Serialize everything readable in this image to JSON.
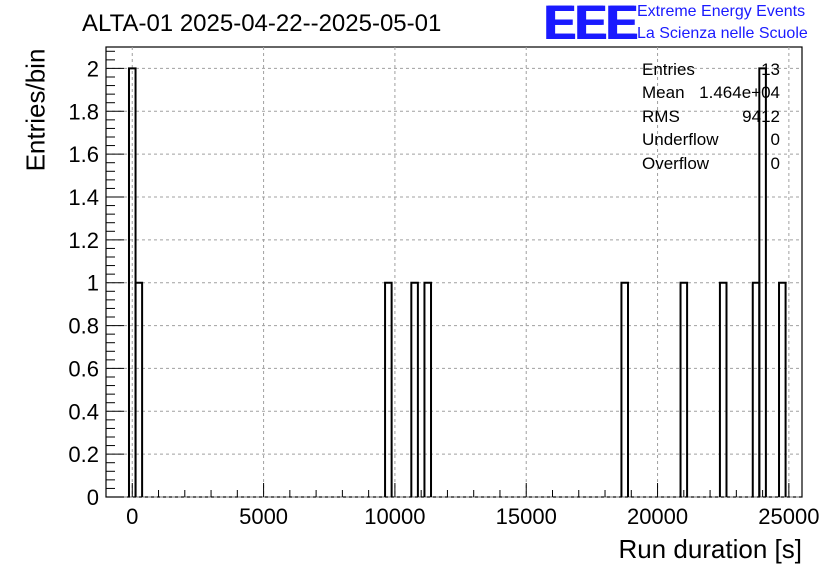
{
  "header": {
    "title": "ALTA-01 2025-04-22--2025-05-01",
    "logo_text": "EEE",
    "logo_line1": "Extreme Energy Events",
    "logo_line2": "La Scienza nelle Scuole"
  },
  "stats_box": {
    "rows": [
      {
        "label": "Entries",
        "value": "13"
      },
      {
        "label": "Mean",
        "value": "1.464e+04"
      },
      {
        "label": "RMS",
        "value": "9412"
      },
      {
        "label": "Underflow",
        "value": "0"
      },
      {
        "label": "Overflow",
        "value": "0"
      }
    ]
  },
  "colors": {
    "logo": "#1a1aff",
    "histogram_line": "#000000",
    "grid": "#a0a0a0"
  },
  "chart_data": {
    "type": "bar",
    "style": "step-histogram",
    "xlabel": "Run duration [s]",
    "ylabel": "Entries/bin",
    "xlim": [
      -1000,
      25500
    ],
    "ylim": [
      0,
      2.1
    ],
    "x_ticks": [
      "0",
      "5000",
      "10000",
      "15000",
      "20000",
      "25000"
    ],
    "y_ticks": [
      "0",
      "0.2",
      "0.4",
      "0.6",
      "0.8",
      "1",
      "1.2",
      "1.4",
      "1.6",
      "1.8",
      "2"
    ],
    "grid": true,
    "bins": [
      {
        "low": -125,
        "high": 125,
        "count": 2
      },
      {
        "low": 125,
        "high": 375,
        "count": 1
      },
      {
        "low": 9625,
        "high": 9875,
        "count": 1
      },
      {
        "low": 10625,
        "high": 10875,
        "count": 1
      },
      {
        "low": 11125,
        "high": 11375,
        "count": 1
      },
      {
        "low": 18625,
        "high": 18875,
        "count": 1
      },
      {
        "low": 20875,
        "high": 21125,
        "count": 1
      },
      {
        "low": 22375,
        "high": 22625,
        "count": 1
      },
      {
        "low": 23625,
        "high": 23875,
        "count": 1
      },
      {
        "low": 23875,
        "high": 24125,
        "count": 2
      },
      {
        "low": 24625,
        "high": 24875,
        "count": 1
      }
    ]
  }
}
